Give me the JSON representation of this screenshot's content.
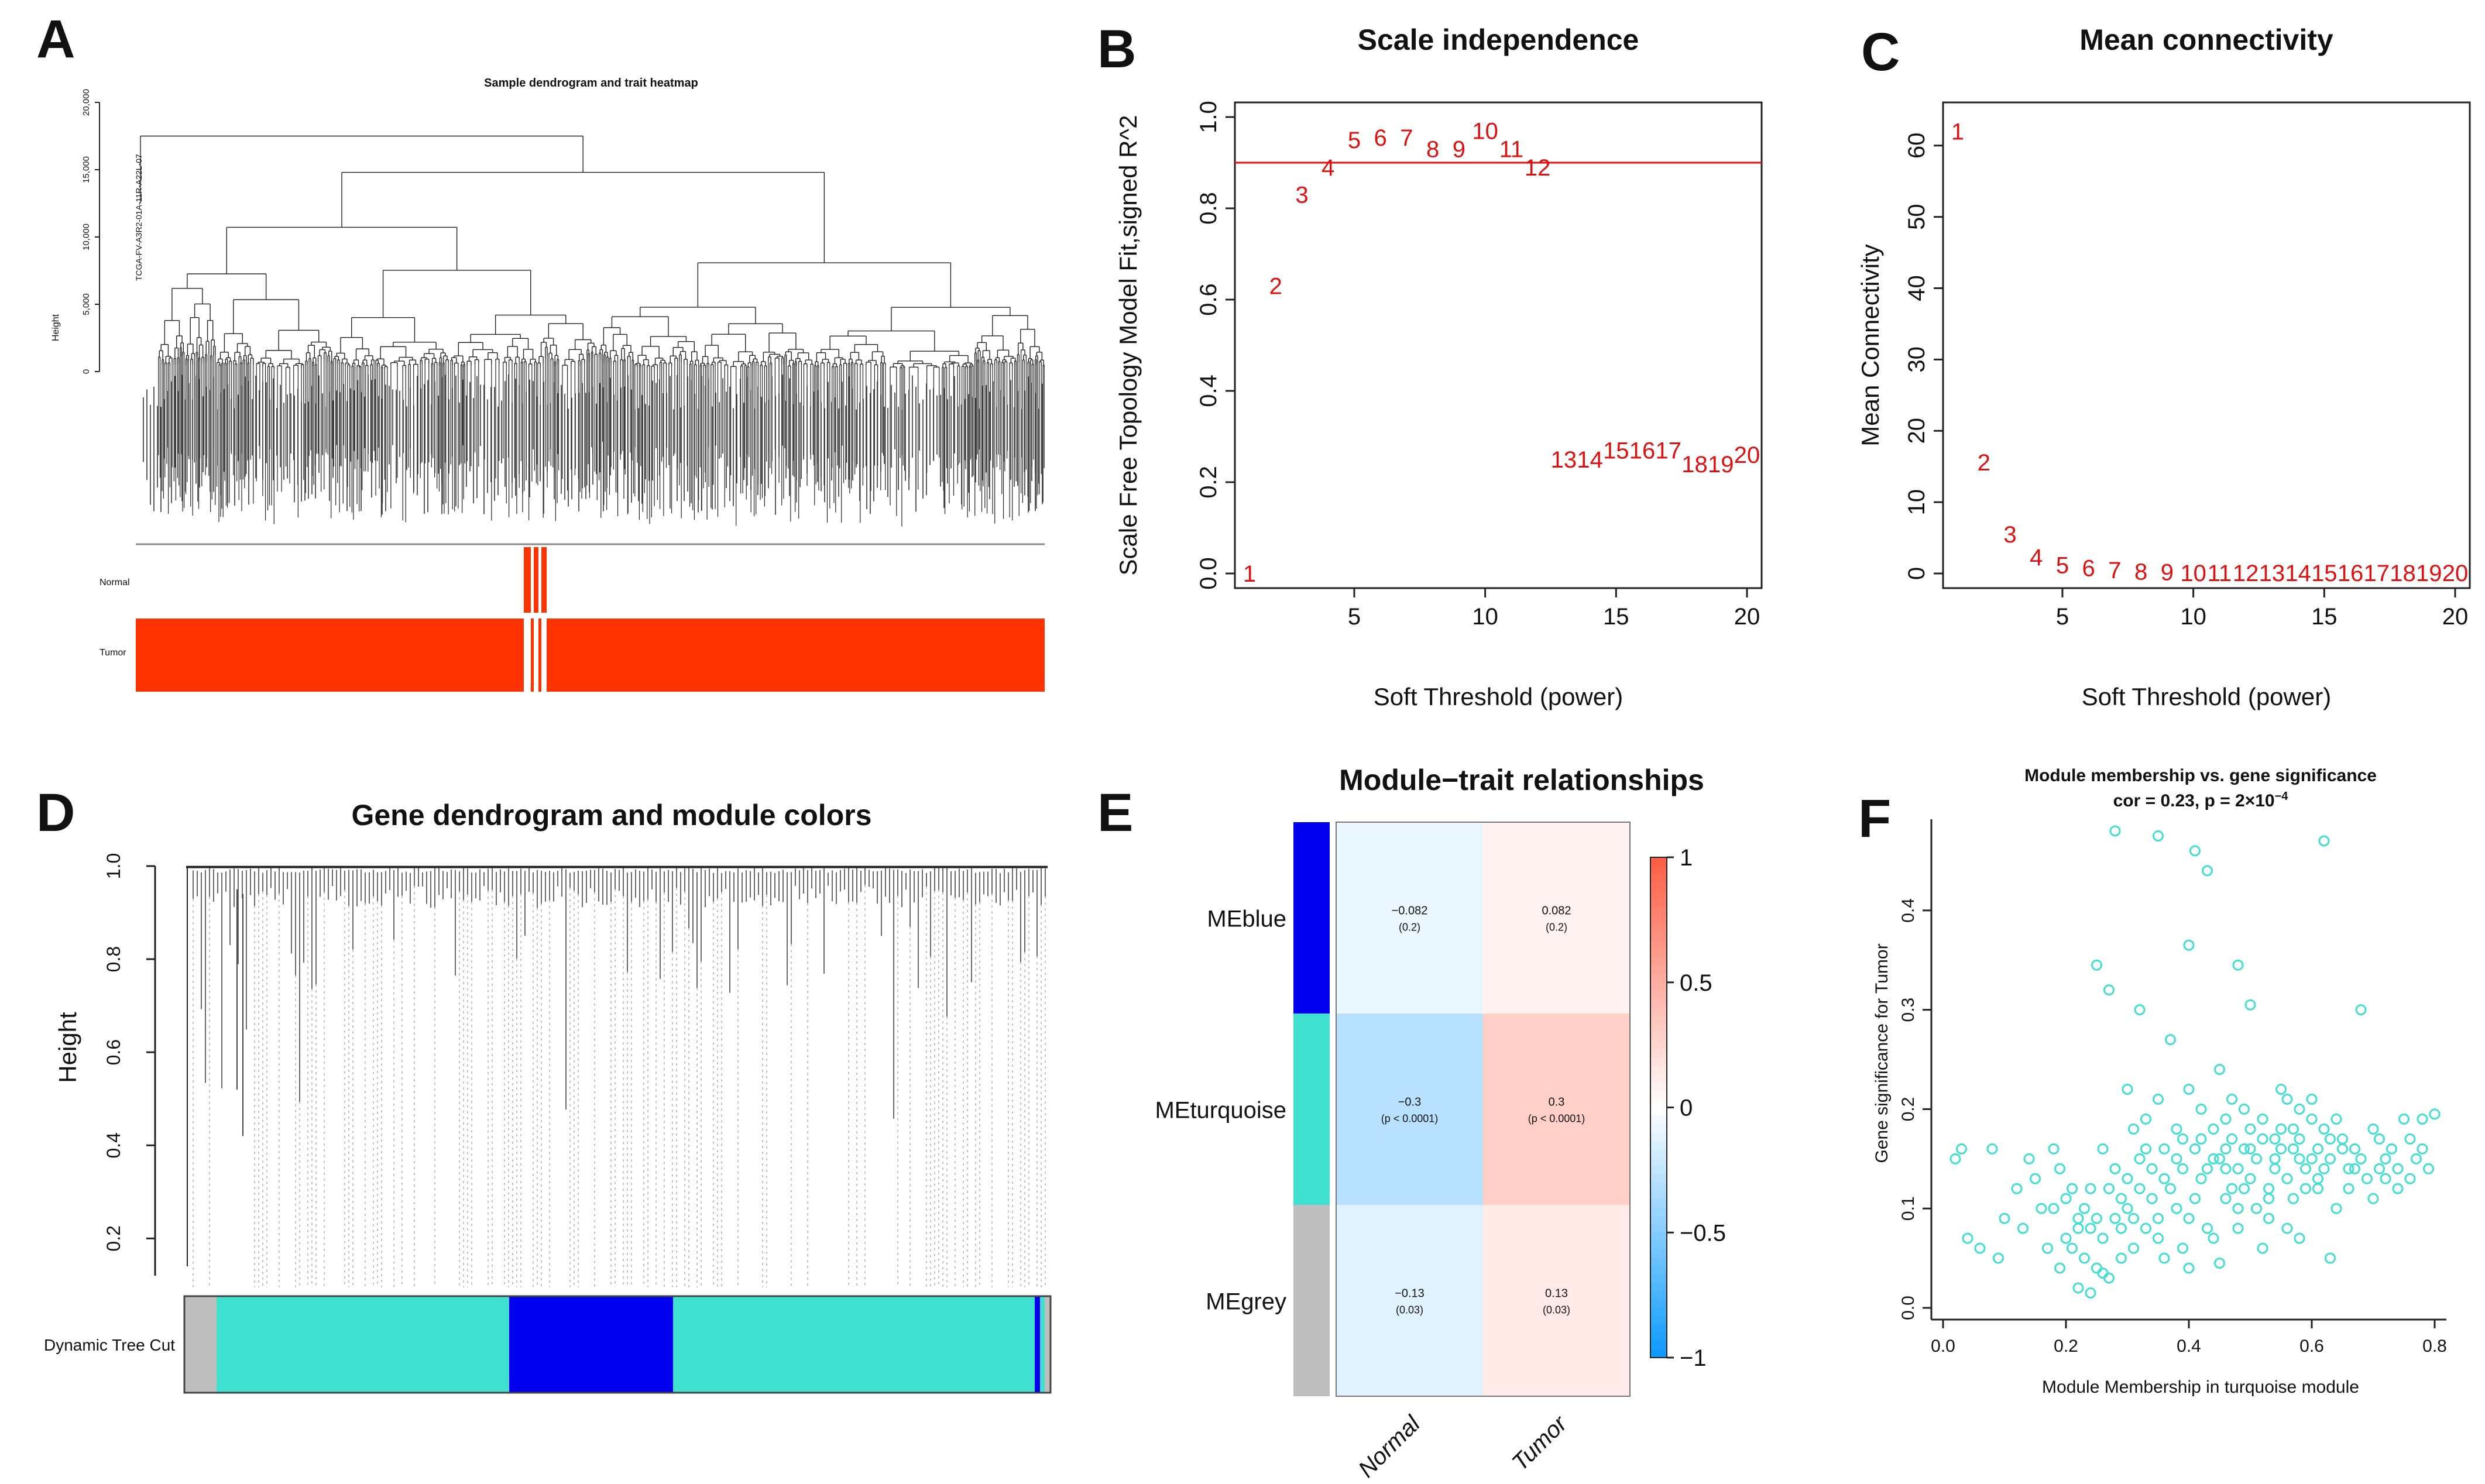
{
  "colors": {
    "red": "#e01010",
    "tumor": "#ff3300",
    "blue": "#0000ee",
    "turquoise": "#40e0d0",
    "grey": "#bebebe",
    "text": "#111111"
  },
  "chart_data": [
    {
      "panel": "A",
      "type": "dendrogram",
      "title": "Sample dendrogram and trait heatmap",
      "ylabel": "Height",
      "yticks": [
        "0",
        "5,000",
        "10,000",
        "15,000",
        "20,000"
      ],
      "ylim": [
        0,
        20000
      ],
      "outlier_label": "TCGA-FV-A3R2-01A-11R-A22L-07",
      "traits": [
        "Normal",
        "Tumor"
      ]
    },
    {
      "panel": "B",
      "type": "scatter",
      "title": "Scale independence",
      "xlabel": "Soft Threshold (power)",
      "ylabel": "Scale Free Topology Model Fit,signed R^2",
      "xlim": [
        1,
        20
      ],
      "ylim": [
        0,
        1
      ],
      "xticks": [
        5,
        10,
        15,
        20
      ],
      "yticks": [
        "0.0",
        "0.2",
        "0.4",
        "0.6",
        "0.8",
        "1.0"
      ],
      "hline": 0.9,
      "x": [
        1,
        2,
        3,
        4,
        5,
        6,
        7,
        8,
        9,
        10,
        11,
        12,
        13,
        14,
        15,
        16,
        17,
        18,
        19,
        20
      ],
      "y": [
        0.0,
        0.63,
        0.83,
        0.89,
        0.95,
        0.955,
        0.955,
        0.93,
        0.93,
        0.97,
        0.93,
        0.89,
        0.25,
        0.25,
        0.27,
        0.27,
        0.27,
        0.24,
        0.24,
        0.26
      ]
    },
    {
      "panel": "C",
      "type": "scatter",
      "title": "Mean connectivity",
      "xlabel": "Soft Threshold (power)",
      "ylabel": "Mean Connectivity",
      "xlim": [
        1,
        20
      ],
      "ylim": [
        0,
        64
      ],
      "xticks": [
        5,
        10,
        15,
        20
      ],
      "yticks": [
        0,
        10,
        20,
        30,
        40,
        50,
        60
      ],
      "x": [
        1,
        2,
        3,
        4,
        5,
        6,
        7,
        8,
        9,
        10,
        11,
        12,
        13,
        14,
        15,
        16,
        17,
        18,
        19,
        20
      ],
      "y": [
        62,
        15.6,
        5.5,
        2.3,
        1.2,
        0.8,
        0.5,
        0.3,
        0.2,
        0.1,
        0.1,
        0.1,
        0.1,
        0.1,
        0.1,
        0.1,
        0.1,
        0.1,
        0.1,
        0.1
      ]
    },
    {
      "panel": "D",
      "type": "dendrogram",
      "title": "Gene dendrogram and module colors",
      "ylabel": "Height",
      "yticks": [
        "0.2",
        "0.4",
        "0.6",
        "0.8",
        "1.0"
      ],
      "ylim": [
        0.12,
        1.0
      ],
      "color_row_label": "Dynamic Tree Cut"
    },
    {
      "panel": "E",
      "type": "heatmap",
      "title": "Module−trait relationships",
      "rows": [
        "MEblue",
        "MEturquoise",
        "MEgrey"
      ],
      "columns": [
        "Normal",
        "Tumor"
      ],
      "values": [
        [
          -0.082,
          0.082
        ],
        [
          -0.3,
          0.3
        ],
        [
          -0.13,
          0.13
        ]
      ],
      "cell_labels": [
        [
          "−0.082",
          "0.082"
        ],
        [
          "−0.3",
          "0.3"
        ],
        [
          "−0.13",
          "0.13"
        ]
      ],
      "cell_sublabels": [
        [
          "(0.2)",
          "(0.2)"
        ],
        [
          "(p < 0.0001)",
          "(p < 0.0001)"
        ],
        [
          "(0.03)",
          "(0.03)"
        ]
      ],
      "legend_ticks": [
        "1",
        "0.5",
        "0",
        "−0.5",
        "−1"
      ],
      "legend_range": [
        -1,
        1
      ]
    },
    {
      "panel": "F",
      "type": "scatter",
      "title": "Module membership vs. gene significance",
      "subtitle_prefix": "cor = 0.23, p = 2×10",
      "subtitle_exp": "−4",
      "xlabel": "Module Membership in turquoise module",
      "ylabel": "Gene significance for  Tumor",
      "xlim": [
        0,
        0.8
      ],
      "ylim": [
        0,
        0.48
      ],
      "xticks": [
        "0.0",
        "0.2",
        "0.4",
        "0.6",
        "0.8"
      ],
      "yticks": [
        "0.0",
        "0.1",
        "0.2",
        "0.3",
        "0.4"
      ],
      "points": [
        [
          0.28,
          0.48
        ],
        [
          0.35,
          0.475
        ],
        [
          0.41,
          0.46
        ],
        [
          0.62,
          0.47
        ],
        [
          0.43,
          0.44
        ],
        [
          0.4,
          0.365
        ],
        [
          0.48,
          0.345
        ],
        [
          0.25,
          0.345
        ],
        [
          0.27,
          0.32
        ],
        [
          0.5,
          0.305
        ],
        [
          0.32,
          0.3
        ],
        [
          0.68,
          0.3
        ],
        [
          0.37,
          0.27
        ],
        [
          0.45,
          0.24
        ],
        [
          0.55,
          0.22
        ],
        [
          0.6,
          0.21
        ],
        [
          0.3,
          0.22
        ],
        [
          0.42,
          0.2
        ],
        [
          0.47,
          0.21
        ],
        [
          0.52,
          0.19
        ],
        [
          0.58,
          0.2
        ],
        [
          0.64,
          0.19
        ],
        [
          0.7,
          0.18
        ],
        [
          0.75,
          0.19
        ],
        [
          0.78,
          0.19
        ],
        [
          0.8,
          0.195
        ],
        [
          0.03,
          0.16
        ],
        [
          0.02,
          0.15
        ],
        [
          0.08,
          0.16
        ],
        [
          0.12,
          0.12
        ],
        [
          0.15,
          0.13
        ],
        [
          0.18,
          0.1
        ],
        [
          0.2,
          0.11
        ],
        [
          0.22,
          0.09
        ],
        [
          0.24,
          0.08
        ],
        [
          0.26,
          0.07
        ],
        [
          0.28,
          0.09
        ],
        [
          0.23,
          0.05
        ],
        [
          0.25,
          0.04
        ],
        [
          0.27,
          0.03
        ],
        [
          0.29,
          0.05
        ],
        [
          0.31,
          0.06
        ],
        [
          0.22,
          0.02
        ],
        [
          0.24,
          0.015
        ],
        [
          0.26,
          0.035
        ],
        [
          0.33,
          0.08
        ],
        [
          0.35,
          0.07
        ],
        [
          0.38,
          0.1
        ],
        [
          0.4,
          0.09
        ],
        [
          0.43,
          0.08
        ],
        [
          0.46,
          0.11
        ],
        [
          0.49,
          0.12
        ],
        [
          0.51,
          0.1
        ],
        [
          0.53,
          0.09
        ],
        [
          0.56,
          0.13
        ],
        [
          0.59,
          0.14
        ],
        [
          0.61,
          0.12
        ],
        [
          0.63,
          0.15
        ],
        [
          0.66,
          0.14
        ],
        [
          0.69,
          0.13
        ],
        [
          0.72,
          0.15
        ],
        [
          0.74,
          0.14
        ],
        [
          0.76,
          0.13
        ],
        [
          0.77,
          0.15
        ],
        [
          0.3,
          0.13
        ],
        [
          0.32,
          0.15
        ],
        [
          0.34,
          0.14
        ],
        [
          0.36,
          0.16
        ],
        [
          0.38,
          0.15
        ],
        [
          0.39,
          0.17
        ],
        [
          0.41,
          0.16
        ],
        [
          0.44,
          0.18
        ],
        [
          0.45,
          0.15
        ],
        [
          0.47,
          0.17
        ],
        [
          0.48,
          0.14
        ],
        [
          0.5,
          0.16
        ],
        [
          0.52,
          0.17
        ],
        [
          0.54,
          0.15
        ],
        [
          0.55,
          0.18
        ],
        [
          0.57,
          0.16
        ],
        [
          0.58,
          0.17
        ],
        [
          0.6,
          0.15
        ],
        [
          0.62,
          0.18
        ],
        [
          0.65,
          0.17
        ],
        [
          0.67,
          0.16
        ],
        [
          0.71,
          0.17
        ],
        [
          0.73,
          0.16
        ],
        [
          0.79,
          0.14
        ],
        [
          0.16,
          0.1
        ],
        [
          0.19,
          0.14
        ],
        [
          0.21,
          0.12
        ],
        [
          0.13,
          0.08
        ],
        [
          0.1,
          0.09
        ],
        [
          0.06,
          0.06
        ],
        [
          0.09,
          0.05
        ],
        [
          0.04,
          0.07
        ],
        [
          0.17,
          0.06
        ],
        [
          0.2,
          0.07
        ],
        [
          0.34,
          0.11
        ],
        [
          0.37,
          0.12
        ],
        [
          0.42,
          0.13
        ],
        [
          0.46,
          0.14
        ],
        [
          0.5,
          0.13
        ],
        [
          0.53,
          0.12
        ],
        [
          0.57,
          0.11
        ],
        [
          0.61,
          0.13
        ],
        [
          0.64,
          0.1
        ],
        [
          0.36,
          0.05
        ],
        [
          0.39,
          0.06
        ],
        [
          0.44,
          0.07
        ],
        [
          0.48,
          0.08
        ],
        [
          0.52,
          0.06
        ],
        [
          0.56,
          0.08
        ],
        [
          0.31,
          0.18
        ],
        [
          0.33,
          0.19
        ],
        [
          0.35,
          0.21
        ],
        [
          0.4,
          0.22
        ],
        [
          0.46,
          0.19
        ],
        [
          0.49,
          0.2
        ],
        [
          0.56,
          0.21
        ],
        [
          0.26,
          0.16
        ],
        [
          0.28,
          0.14
        ],
        [
          0.24,
          0.12
        ],
        [
          0.3,
          0.1
        ],
        [
          0.18,
          0.16
        ],
        [
          0.14,
          0.15
        ],
        [
          0.58,
          0.07
        ],
        [
          0.63,
          0.05
        ],
        [
          0.45,
          0.045
        ],
        [
          0.4,
          0.04
        ],
        [
          0.66,
          0.12
        ],
        [
          0.7,
          0.11
        ],
        [
          0.74,
          0.12
        ],
        [
          0.78,
          0.16
        ],
        [
          0.6,
          0.19
        ],
        [
          0.42,
          0.17
        ],
        [
          0.38,
          0.18
        ],
        [
          0.54,
          0.14
        ],
        [
          0.27,
          0.12
        ],
        [
          0.23,
          0.1
        ],
        [
          0.21,
          0.06
        ],
        [
          0.19,
          0.04
        ],
        [
          0.29,
          0.08
        ],
        [
          0.32,
          0.12
        ],
        [
          0.44,
          0.15
        ],
        [
          0.51,
          0.15
        ],
        [
          0.65,
          0.16
        ],
        [
          0.68,
          0.15
        ],
        [
          0.72,
          0.13
        ],
        [
          0.76,
          0.17
        ],
        [
          0.59,
          0.12
        ],
        [
          0.47,
          0.12
        ],
        [
          0.35,
          0.09
        ],
        [
          0.41,
          0.11
        ],
        [
          0.55,
          0.16
        ],
        [
          0.62,
          0.14
        ],
        [
          0.57,
          0.18
        ],
        [
          0.5,
          0.18
        ],
        [
          0.43,
          0.14
        ],
        [
          0.36,
          0.13
        ],
        [
          0.33,
          0.16
        ],
        [
          0.29,
          0.11
        ],
        [
          0.25,
          0.09
        ],
        [
          0.22,
          0.08
        ],
        [
          0.48,
          0.1
        ],
        [
          0.53,
          0.11
        ],
        [
          0.67,
          0.14
        ],
        [
          0.71,
          0.14
        ],
        [
          0.63,
          0.17
        ],
        [
          0.49,
          0.16
        ],
        [
          0.39,
          0.14
        ],
        [
          0.31,
          0.09
        ],
        [
          0.61,
          0.16
        ],
        [
          0.46,
          0.16
        ],
        [
          0.58,
          0.15
        ],
        [
          0.54,
          0.17
        ]
      ]
    }
  ]
}
